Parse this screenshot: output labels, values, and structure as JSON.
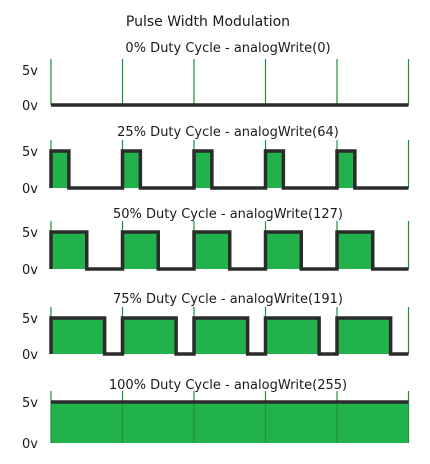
{
  "diagram": {
    "title": "Pulse Width Modulation",
    "high_label": "5v",
    "low_label": "0v",
    "periods": 5,
    "colors": {
      "fill": "#22b24c",
      "signal_line": "#2b2b2b",
      "marker_line": "#1f8f3a",
      "text": "#1a1a1a"
    },
    "panels": [
      {
        "label": "0% Duty Cycle - analogWrite(0)",
        "duty": 0.0
      },
      {
        "label": "25% Duty Cycle - analogWrite(64)",
        "duty": 0.25
      },
      {
        "label": "50% Duty Cycle - analogWrite(127)",
        "duty": 0.5
      },
      {
        "label": "75% Duty Cycle - analogWrite(191)",
        "duty": 0.75
      },
      {
        "label": "100% Duty Cycle - analogWrite(255)",
        "duty": 1.0
      }
    ]
  }
}
